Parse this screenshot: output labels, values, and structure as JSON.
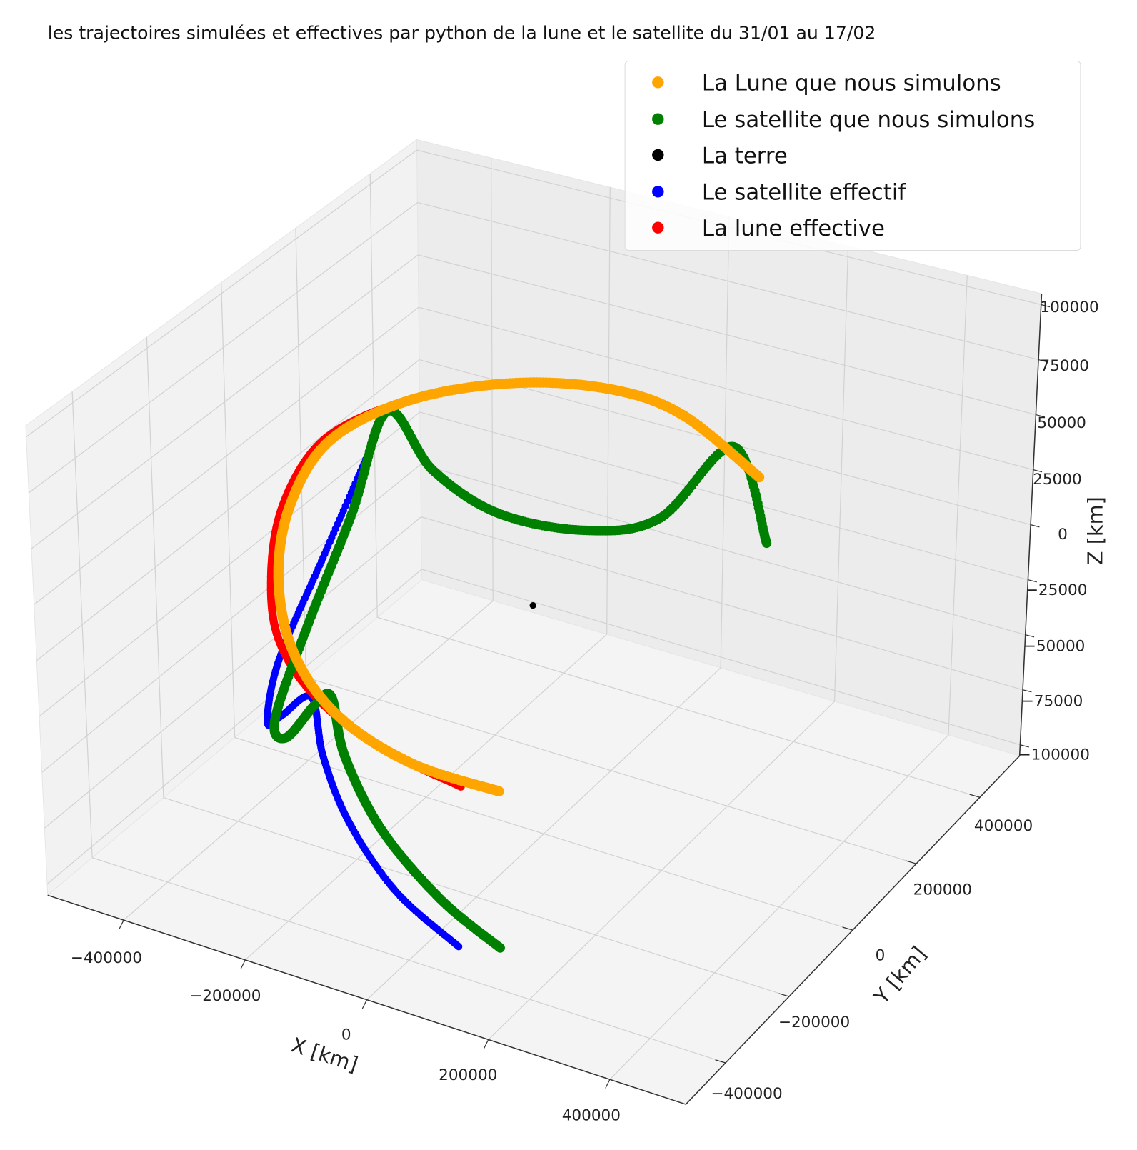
{
  "chart_data": {
    "type": "scatter3d",
    "title": "les trajectoires simulées et effectives par python de la lune et le satellite du 31/01 au 17/02",
    "xlabel": "X [km]",
    "ylabel": "Y [km]",
    "zlabel": "Z [km]",
    "xlim": [
      -525000,
      525000
    ],
    "ylim": [
      -525000,
      525000
    ],
    "zlim": [
      -105000,
      105000
    ],
    "grid": true,
    "legend_position": "top-right",
    "x_ticks": [
      "−400000",
      "−200000",
      "0",
      "200000",
      "400000"
    ],
    "x_tick_values": [
      -400000,
      -200000,
      0,
      200000,
      400000
    ],
    "y_ticks": [
      "−400000",
      "−200000",
      "0",
      "200000",
      "400000"
    ],
    "y_tick_values": [
      -400000,
      -200000,
      0,
      200000,
      400000
    ],
    "z_ticks": [
      "−100000",
      "−75000",
      "−50000",
      "−25000",
      "0",
      "25000",
      "50000",
      "75000",
      "100000"
    ],
    "z_tick_values": [
      -100000,
      -75000,
      -50000,
      -25000,
      0,
      25000,
      50000,
      75000,
      100000
    ],
    "series": [
      {
        "name": "La Lune que nous simulons",
        "color": "#ffa500",
        "points": [
          [
            105000,
            -267000,
            -42000
          ],
          [
            -39500,
            -283000,
            -37800
          ],
          [
            -181000,
            -262000,
            -29400
          ],
          [
            -293000,
            -205000,
            -16800
          ],
          [
            -371000,
            -122000,
            0
          ],
          [
            -415000,
            -19000,
            16800
          ],
          [
            -416000,
            97000,
            31500
          ],
          [
            -339000,
            202000,
            42000
          ],
          [
            -231000,
            318000,
            42000
          ],
          [
            -111000,
            395000,
            37800
          ],
          [
            -3000,
            428000,
            29400
          ],
          [
            166000,
            373000,
            21000
          ]
        ]
      },
      {
        "name": "Le satellite que nous simulons",
        "color": "#008000",
        "points": [
          [
            211000,
            -436000,
            -84000
          ],
          [
            92000,
            -413000,
            -73500
          ],
          [
            -58000,
            -338000,
            -63000
          ],
          [
            -185000,
            -237000,
            -52500
          ],
          [
            -258000,
            -156000,
            -42000
          ],
          [
            -281000,
            -164000,
            -46000
          ],
          [
            -289000,
            -235000,
            -52500
          ],
          [
            -318000,
            -219000,
            -48000
          ],
          [
            -333000,
            -100000,
            -21000
          ],
          [
            -343000,
            40800,
            10500
          ],
          [
            -339000,
            136000,
            46000
          ],
          [
            -257000,
            132000,
            25000
          ],
          [
            -151000,
            148000,
            10500
          ],
          [
            -32000,
            204000,
            4000
          ],
          [
            51000,
            278000,
            6000
          ],
          [
            99000,
            409000,
            25000
          ],
          [
            209000,
            324000,
            0
          ]
        ]
      },
      {
        "name": "La terre",
        "color": "#000000",
        "points": [
          [
            0,
            0,
            0
          ]
        ]
      },
      {
        "name": "Le satellite effectif",
        "color": "#0000ff",
        "points": [
          [
            155000,
            -463000,
            -84000
          ],
          [
            23000,
            -427000,
            -73500
          ],
          [
            -112000,
            -343000,
            -63000
          ],
          [
            -213000,
            -253000,
            -52500
          ],
          [
            -284000,
            -171000,
            -42000
          ],
          [
            -314000,
            -205000,
            -48000
          ],
          [
            -329000,
            -223000,
            -50000
          ],
          [
            -349000,
            -158000,
            -31500
          ],
          [
            -347000,
            -35000,
            0
          ],
          [
            -338000,
            97000,
            38000
          ]
        ]
      },
      {
        "name": "La lune effective",
        "color": "#ff0000",
        "points": [
          [
            48000,
            -283000,
            -42000
          ],
          [
            -93000,
            -279000,
            -35700
          ],
          [
            -224000,
            -255000,
            -25000
          ],
          [
            -322000,
            -202000,
            -12600
          ],
          [
            -392000,
            -109000,
            0
          ],
          [
            -431000,
            -14000,
            14700
          ],
          [
            -437000,
            90000,
            27300
          ],
          [
            -387000,
            155000,
            37800
          ],
          [
            -312000,
            241000,
            42000
          ]
        ]
      }
    ]
  }
}
